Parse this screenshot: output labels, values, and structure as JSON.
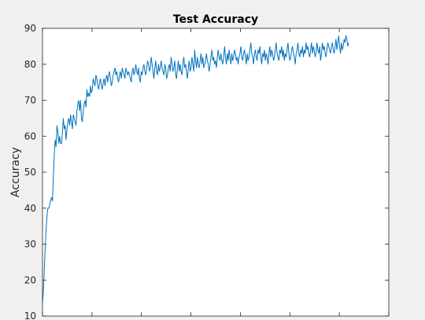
{
  "chart_data": {
    "type": "line",
    "title": "Test Accuracy",
    "xlabel": "",
    "ylabel": "Accuracy",
    "ylim": [
      10,
      90
    ],
    "yticks": [
      10,
      20,
      30,
      40,
      50,
      60,
      70,
      80,
      90
    ],
    "grid": false,
    "series_color": "#0072bd",
    "series": [
      {
        "values": [
          14,
          17,
          23,
          29,
          34,
          38,
          40,
          40,
          41,
          42,
          43,
          42,
          49,
          55,
          59,
          57,
          63,
          61,
          58,
          60,
          58,
          58,
          61,
          65,
          62,
          63,
          59,
          62,
          64,
          65,
          63,
          66,
          64,
          62,
          66,
          65,
          64,
          63,
          67,
          69,
          70,
          67,
          70,
          65,
          64,
          67,
          69,
          70,
          68,
          73,
          71,
          72,
          71,
          74,
          72,
          73,
          76,
          75,
          74,
          77,
          76,
          74,
          73,
          75,
          76,
          74,
          73,
          75,
          76,
          74,
          76,
          77,
          75,
          77,
          78,
          76,
          74,
          75,
          77,
          78,
          79,
          77,
          78,
          76,
          75,
          77,
          78,
          76,
          79,
          78,
          77,
          76,
          79,
          78,
          77,
          78,
          77,
          76,
          75,
          78,
          79,
          77,
          78,
          80,
          78,
          77,
          79,
          76,
          75,
          78,
          77,
          79,
          80,
          78,
          77,
          79,
          81,
          80,
          78,
          79,
          82,
          80,
          78,
          76,
          79,
          81,
          78,
          77,
          80,
          78,
          79,
          81,
          79,
          78,
          77,
          80,
          79,
          76,
          77,
          79,
          80,
          78,
          82,
          80,
          78,
          79,
          81,
          77,
          76,
          79,
          81,
          78,
          80,
          78,
          77,
          80,
          82,
          79,
          80,
          78,
          76,
          79,
          81,
          78,
          79,
          82,
          80,
          78,
          84,
          81,
          79,
          82,
          80,
          79,
          81,
          83,
          80,
          82,
          79,
          80,
          81,
          83,
          81,
          80,
          78,
          80,
          82,
          84,
          81,
          82,
          80,
          81,
          79,
          82,
          84,
          82,
          81,
          83,
          81,
          80,
          82,
          85,
          82,
          80,
          83,
          81,
          84,
          82,
          80,
          83,
          81,
          82,
          84,
          83,
          81,
          82,
          80,
          82,
          83,
          85,
          82,
          81,
          83,
          84,
          82,
          80,
          83,
          81,
          82,
          84,
          86,
          83,
          82,
          80,
          83,
          84,
          82,
          81,
          84,
          83,
          85,
          82,
          80,
          83,
          82,
          84,
          81,
          83,
          82,
          80,
          83,
          85,
          82,
          84,
          83,
          81,
          82,
          84,
          86,
          83,
          82,
          81,
          84,
          83,
          85,
          82,
          84,
          81,
          83,
          82,
          84,
          86,
          83,
          81,
          82,
          84,
          85,
          83,
          82,
          80,
          83,
          84,
          86,
          83,
          82,
          84,
          83,
          85,
          82,
          84,
          83,
          86,
          84,
          85,
          83,
          82,
          84,
          86,
          83,
          85,
          84,
          82,
          83,
          86,
          84,
          83,
          85,
          81,
          83,
          86,
          84,
          85,
          83,
          82,
          84,
          86,
          85,
          84,
          83,
          85,
          86,
          84,
          83,
          85,
          87,
          84,
          86,
          88,
          85,
          83,
          86,
          84,
          85,
          87,
          86,
          88,
          87,
          85,
          86
        ]
      }
    ]
  }
}
